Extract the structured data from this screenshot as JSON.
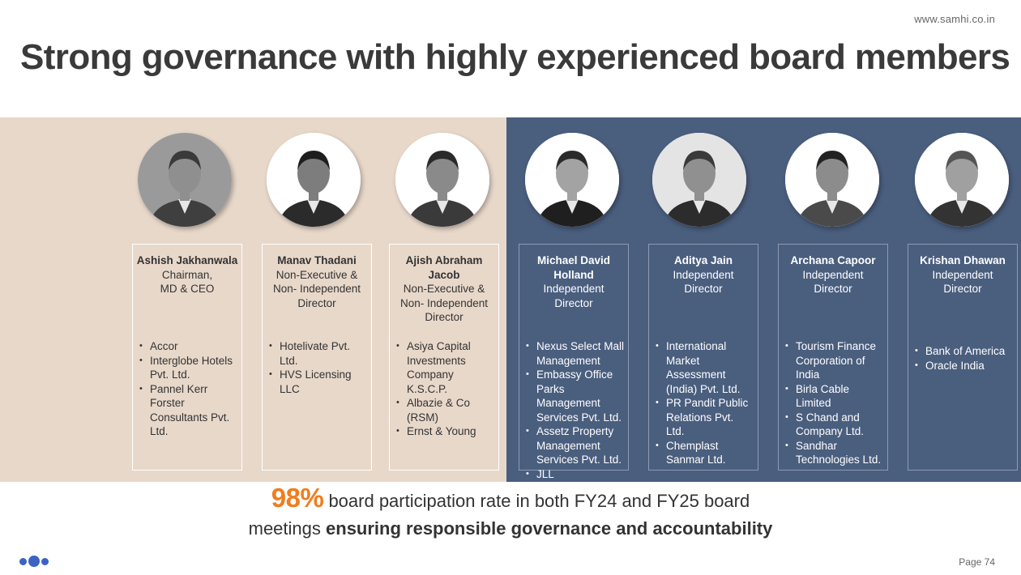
{
  "header": {
    "site_url": "www.samhi.co.in",
    "title": "Strong governance with highly experienced board members"
  },
  "colors": {
    "executive_band": "#e8d8ca",
    "independent_band": "#4a5e7e",
    "highlight": "#f07d1e",
    "logo_blue": "#3b63c4"
  },
  "board": [
    {
      "name": "Ashish Jakhanwala",
      "role": "Chairman,\nMD & CEO",
      "organizations": [
        "Accor",
        "Interglobe Hotels Pvt. Ltd.",
        "Pannel Kerr Forster Consultants Pvt. Ltd."
      ]
    },
    {
      "name": "Manav Thadani",
      "role": "Non-Executive & Non- Independent Director",
      "organizations": [
        "Hotelivate Pvt. Ltd.",
        "HVS Licensing LLC"
      ]
    },
    {
      "name": "Ajish Abraham Jacob",
      "role": "Non-Executive & Non- Independent Director",
      "organizations": [
        "Asiya Capital Investments Company K.S.C.P.",
        "Albazie & Co (RSM)",
        "Ernst & Young"
      ]
    },
    {
      "name": "Michael David Holland",
      "role": "Independent Director",
      "organizations": [
        "Nexus Select Mall Management",
        "Embassy Office Parks Management Services Pvt. Ltd.",
        "Assetz Property Management Services Pvt. Ltd.",
        "JLL"
      ]
    },
    {
      "name": "Aditya Jain",
      "role": "Independent Director",
      "organizations": [
        "International Market Assessment (India) Pvt. Ltd.",
        "PR Pandit Public Relations Pvt. Ltd.",
        "Chemplast Sanmar Ltd."
      ]
    },
    {
      "name": "Archana Capoor",
      "role": "Independent Director",
      "organizations": [
        "Tourism Finance Corporation of India",
        "Birla Cable Limited",
        "S Chand and Company Ltd.",
        "Sandhar Technologies Ltd."
      ]
    },
    {
      "name": "Krishan Dhawan",
      "role": "Independent Director",
      "organizations": [
        "Bank of America",
        "Oracle India"
      ]
    }
  ],
  "summary": {
    "highlight": "98%",
    "text_part1": " board participation rate in both FY24 and FY25 board",
    "text_part2": "meetings ",
    "text_bold": "ensuring responsible governance and accountability"
  },
  "footer": {
    "page_label": "Page 74"
  }
}
